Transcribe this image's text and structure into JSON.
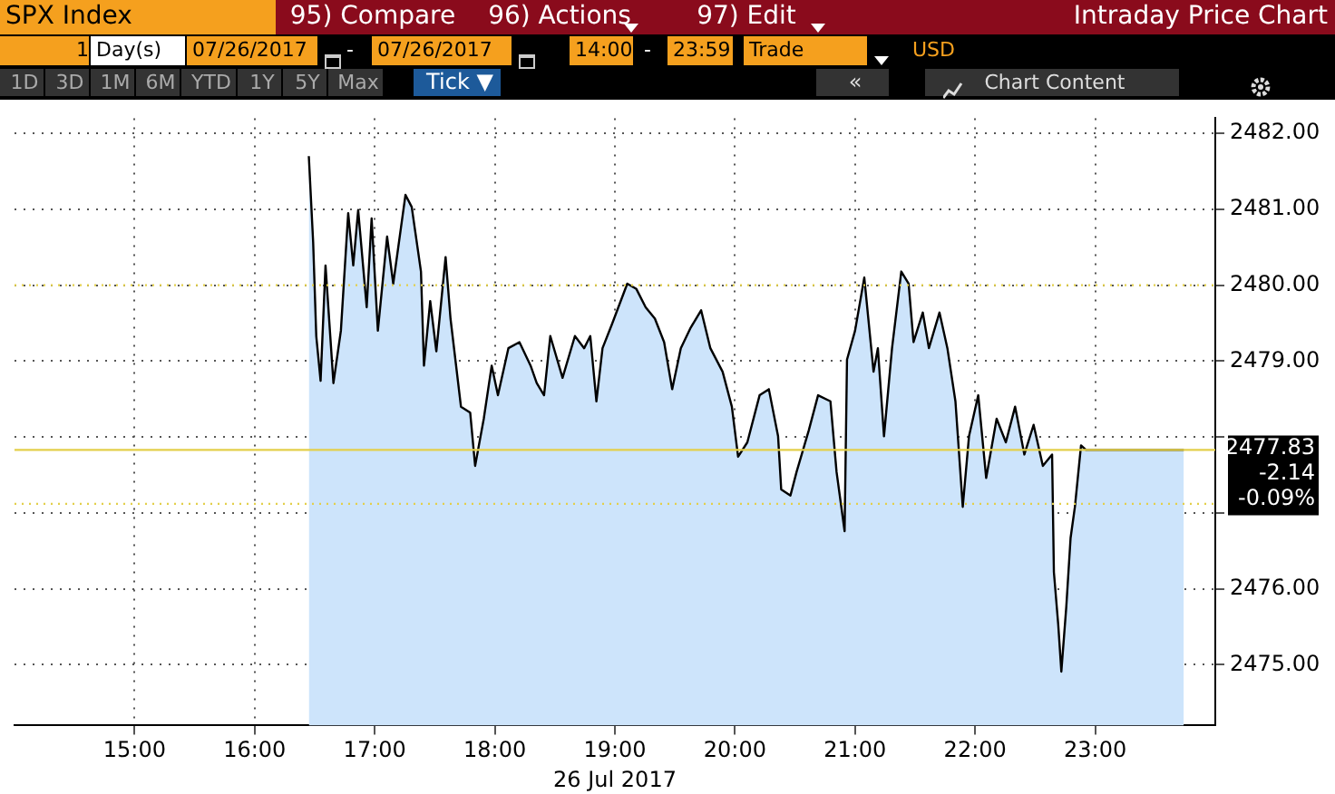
{
  "chart_data": {
    "type": "area",
    "title": "SPX Index",
    "subtitle": "Intraday Price Chart",
    "xlabel": "26 Jul 2017",
    "color": "#cde4fb",
    "x": [
      16.451,
      16.487,
      16.513,
      16.549,
      16.59,
      16.656,
      16.718,
      16.779,
      16.821,
      16.862,
      16.933,
      16.974,
      17.026,
      17.103,
      17.154,
      17.256,
      17.308,
      17.385,
      17.41,
      17.462,
      17.513,
      17.59,
      17.631,
      17.718,
      17.795,
      17.836,
      17.908,
      17.974,
      18.026,
      18.113,
      18.205,
      18.298,
      18.349,
      18.41,
      18.462,
      18.564,
      18.667,
      18.744,
      18.795,
      18.846,
      18.897,
      18.974,
      19.103,
      19.179,
      19.256,
      19.333,
      19.41,
      19.477,
      19.549,
      19.631,
      19.718,
      19.795,
      19.897,
      19.974,
      20.026,
      20.103,
      20.205,
      20.282,
      20.359,
      20.385,
      20.462,
      20.513,
      20.615,
      20.692,
      20.795,
      20.846,
      20.913,
      20.933,
      21.0,
      21.077,
      21.154,
      21.19,
      21.241,
      21.308,
      21.385,
      21.446,
      21.487,
      21.564,
      21.615,
      21.703,
      21.769,
      21.836,
      21.897,
      21.949,
      22.026,
      22.092,
      22.179,
      22.256,
      22.333,
      22.41,
      22.487,
      22.564,
      22.641,
      22.656,
      22.692,
      22.718,
      22.759,
      22.795,
      22.831,
      22.882,
      22.923,
      23.738
    ],
    "values": [
      2481.7,
      2480.57,
      2479.33,
      2478.74,
      2480.26,
      2478.71,
      2479.4,
      2480.95,
      2480.26,
      2480.99,
      2479.71,
      2480.88,
      2479.4,
      2480.64,
      2480.02,
      2481.19,
      2481.03,
      2480.18,
      2478.94,
      2479.79,
      2479.13,
      2480.37,
      2479.56,
      2478.4,
      2478.32,
      2477.62,
      2478.24,
      2478.94,
      2478.55,
      2479.17,
      2479.25,
      2478.94,
      2478.71,
      2478.55,
      2479.33,
      2478.78,
      2479.33,
      2479.17,
      2479.33,
      2478.47,
      2479.17,
      2479.48,
      2480.02,
      2479.95,
      2479.71,
      2479.56,
      2479.25,
      2478.63,
      2479.17,
      2479.44,
      2479.67,
      2479.17,
      2478.86,
      2478.4,
      2477.74,
      2477.93,
      2478.55,
      2478.63,
      2478.01,
      2477.31,
      2477.23,
      2477.54,
      2478.09,
      2478.55,
      2478.47,
      2477.54,
      2476.76,
      2479.02,
      2479.4,
      2480.1,
      2478.86,
      2479.17,
      2478.01,
      2479.17,
      2480.18,
      2480.02,
      2479.25,
      2479.64,
      2479.17,
      2479.64,
      2479.17,
      2478.47,
      2477.08,
      2478.01,
      2478.55,
      2477.46,
      2478.24,
      2477.93,
      2478.4,
      2477.77,
      2478.16,
      2477.62,
      2477.77,
      2476.22,
      2475.53,
      2474.91,
      2475.76,
      2476.67,
      2477.08,
      2477.89,
      2477.83,
      2477.83
    ],
    "xlim": [
      14,
      24
    ],
    "xticks": [
      {
        "value": 15,
        "label": "15:00"
      },
      {
        "value": 16,
        "label": "16:00"
      },
      {
        "value": 17,
        "label": "17:00"
      },
      {
        "value": 18,
        "label": "18:00"
      },
      {
        "value": 19,
        "label": "19:00"
      },
      {
        "value": 20,
        "label": "20:00"
      },
      {
        "value": 21,
        "label": "21:00"
      },
      {
        "value": 22,
        "label": "22:00"
      },
      {
        "value": 23,
        "label": "23:00"
      }
    ],
    "ylim": [
      2474.2,
      2482.2
    ],
    "yticks": [
      {
        "value": 2475,
        "label": "2475.00"
      },
      {
        "value": 2476,
        "label": "2476.00"
      },
      {
        "value": 2477,
        "label": null
      },
      {
        "value": 2478,
        "label": null
      },
      {
        "value": 2479,
        "label": "2479.00"
      },
      {
        "value": 2480,
        "label": "2480.00"
      },
      {
        "value": 2481,
        "label": "2481.00"
      },
      {
        "value": 2482,
        "label": "2482.00"
      }
    ],
    "grid": true,
    "ref_lines": [
      {
        "axis": "y",
        "value": 2480,
        "color": "#e3cf4a",
        "line_style": "dotted"
      },
      {
        "axis": "y",
        "value": 2477.12,
        "color": "#e3cf4a",
        "line_style": "dotted"
      },
      {
        "axis": "y",
        "value": 2477.83,
        "label": "2477.83",
        "color": "#e3cf4a",
        "line_style": "solid"
      }
    ],
    "annotations": [
      "95) Compare",
      "96) Actions",
      "97) Edit",
      "1",
      "Day(s)",
      "07/26/2017",
      "-",
      "07/26/2017",
      "14:00",
      "-",
      "23:59",
      "Trade",
      "USD",
      "1D",
      "3D",
      "1M",
      "6M",
      "YTD",
      "1Y",
      "5Y",
      "Max",
      "Tick ▼",
      "«",
      "Chart Content",
      "-2.14",
      "-0.09%"
    ]
  }
}
